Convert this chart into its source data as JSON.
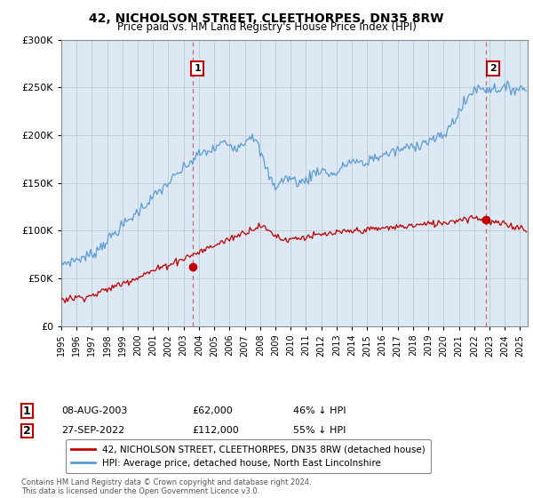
{
  "title": "42, NICHOLSON STREET, CLEETHORPES, DN35 8RW",
  "subtitle": "Price paid vs. HM Land Registry's House Price Index (HPI)",
  "legend_line1": "42, NICHOLSON STREET, CLEETHORPES, DN35 8RW (detached house)",
  "legend_line2": "HPI: Average price, detached house, North East Lincolnshire",
  "transaction1_label": "1",
  "transaction1_date": "08-AUG-2003",
  "transaction1_price": "£62,000",
  "transaction1_hpi": "46% ↓ HPI",
  "transaction1_year": 2003.6,
  "transaction1_value": 62000,
  "transaction2_label": "2",
  "transaction2_date": "27-SEP-2022",
  "transaction2_price": "£112,000",
  "transaction2_hpi": "55% ↓ HPI",
  "transaction2_year": 2022.75,
  "transaction2_value": 112000,
  "footer": "Contains HM Land Registry data © Crown copyright and database right 2024.\nThis data is licensed under the Open Government Licence v3.0.",
  "hpi_color": "#5b9bd5",
  "price_color": "#c00000",
  "vline_color": "#c8696a",
  "bg_fill_color": "#dce9f5",
  "background_color": "#ffffff",
  "grid_color": "#c0c8d0",
  "ylim": [
    0,
    300000
  ],
  "yticks": [
    0,
    50000,
    100000,
    150000,
    200000,
    250000,
    300000
  ],
  "xlim_start": 1995.0,
  "xlim_end": 2025.5
}
